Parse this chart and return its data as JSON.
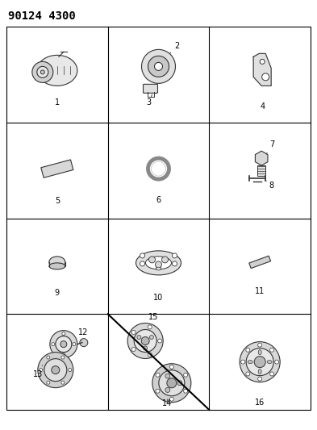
{
  "title": "90124 4300",
  "bg_color": "#ffffff",
  "grid_color": "#000000",
  "text_color": "#000000",
  "fig_width": 3.93,
  "fig_height": 5.33,
  "dpi": 100,
  "grid_rows": 4,
  "grid_cols": 3,
  "title_fontsize": 10,
  "label_fontsize": 7,
  "part_line_color": "#333333"
}
